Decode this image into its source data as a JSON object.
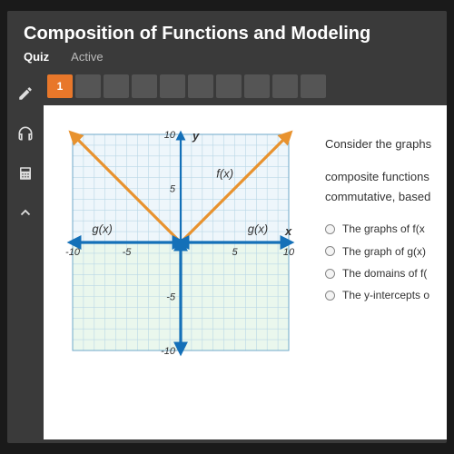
{
  "header": {
    "title": "Composition of Functions and Modeling",
    "quiz": "Quiz",
    "active": "Active"
  },
  "tabs": {
    "count": 10,
    "active_index": 0,
    "active_label": "1"
  },
  "question": {
    "prompt_line1": "Consider the graphs",
    "prompt_line2": "composite functions",
    "prompt_line3": "commutative, based",
    "options": [
      "The graphs of f(x",
      "The graph of g(x)",
      "The domains of f(",
      "The y-intercepts o"
    ]
  },
  "graph": {
    "type": "coordinate-plot",
    "xlim": [
      -10,
      10
    ],
    "ylim": [
      -10,
      10
    ],
    "tick_step": 1,
    "label_step": 5,
    "axis_labels": {
      "x": "x",
      "y": "y"
    },
    "background_top": "#eef6fb",
    "background_bottom": "#eaf7ed",
    "grid_color": "#b9d7e6",
    "axis_color": "#1470b8",
    "axis_width": 2.2,
    "text_color": "#333333",
    "curves": [
      {
        "name": "f(x)",
        "color": "#e8922e",
        "width": 3.2,
        "arrows": true,
        "points": [
          [
            -10,
            10
          ],
          [
            0,
            0
          ],
          [
            10,
            10
          ]
        ],
        "label_pos": [
          3.3,
          6.4
        ]
      },
      {
        "name": "g(x)",
        "color": "#1470b8",
        "width": 3.2,
        "arrows": true,
        "points": [
          [
            -10,
            0
          ],
          [
            0,
            0
          ]
        ],
        "label_pos_left": [
          -8.2,
          1.0
        ],
        "label_pos_right": [
          6.6,
          1.0
        ]
      },
      {
        "name": "g(x)_right",
        "color": "#1470b8",
        "width": 3.2,
        "arrows": true,
        "points": [
          [
            0,
            0
          ],
          [
            10,
            0
          ]
        ]
      },
      {
        "name": "g(x)_down",
        "color": "#1470b8",
        "width": 3.2,
        "arrows": true,
        "points": [
          [
            0,
            0
          ],
          [
            0,
            -10
          ]
        ]
      }
    ]
  }
}
